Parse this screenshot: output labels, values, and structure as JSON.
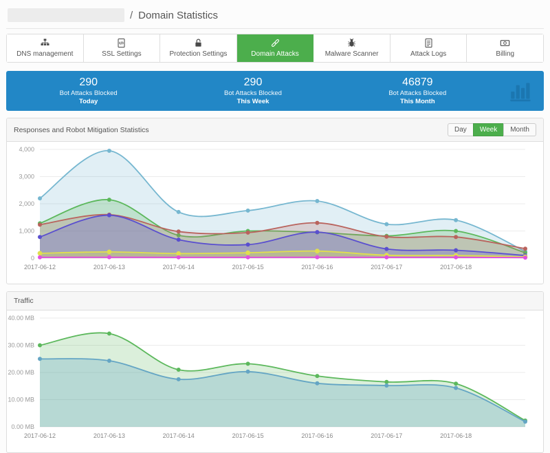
{
  "header": {
    "separator": "/",
    "title": "Domain Statistics"
  },
  "tabs": [
    {
      "label": "DNS management",
      "icon": "sitemap-icon",
      "active": false
    },
    {
      "label": "SSL Settings",
      "icon": "file-code-icon",
      "active": false
    },
    {
      "label": "Protection Settings",
      "icon": "unlock-icon",
      "active": false
    },
    {
      "label": "Domain Attacks",
      "icon": "chain-icon",
      "active": true
    },
    {
      "label": "Malware Scanner",
      "icon": "bug-icon",
      "active": false
    },
    {
      "label": "Attack Logs",
      "icon": "file-text-icon",
      "active": false
    },
    {
      "label": "Billing",
      "icon": "banknote-icon",
      "active": false
    }
  ],
  "banner": {
    "bg_color": "#2287c6",
    "icon": "bar-chart-icon",
    "stats": [
      {
        "value": "290",
        "label": "Bot Attacks Blocked",
        "period": "Today"
      },
      {
        "value": "290",
        "label": "Bot Attacks Blocked",
        "period": "This Week"
      },
      {
        "value": "46879",
        "label": "Bot Attacks Blocked",
        "period": "This Month"
      }
    ]
  },
  "chart_data": [
    {
      "type": "area",
      "title": "Responses and Robot Mitigation Statistics",
      "range_buttons": [
        "Day",
        "Week",
        "Month"
      ],
      "active_range": "Week",
      "x": [
        "2017-06-12",
        "2017-06-13",
        "2017-06-14",
        "2017-06-15",
        "2017-06-16",
        "2017-06-17",
        "2017-06-18",
        ""
      ],
      "ylim": [
        0,
        4000
      ],
      "yticks": [
        0,
        1000,
        2000,
        3000,
        4000
      ],
      "ytick_labels": [
        "0",
        "1,000",
        "2,000",
        "3,000",
        "4,000"
      ],
      "grid": true,
      "legend": "none",
      "series": [
        {
          "name": "light-blue",
          "color": "#76b7d0",
          "fill_opacity": 0.22,
          "dot_radius": 3,
          "values": [
            2200,
            3950,
            1700,
            1750,
            2100,
            1250,
            1400,
            250
          ]
        },
        {
          "name": "green",
          "color": "#5cb85c",
          "fill_opacity": 0.25,
          "dot_radius": 3,
          "values": [
            1280,
            2150,
            840,
            1000,
            950,
            820,
            1000,
            200
          ]
        },
        {
          "name": "red",
          "color": "#b9635d",
          "fill_opacity": 0.22,
          "dot_radius": 3,
          "values": [
            1230,
            1600,
            980,
            940,
            1300,
            790,
            780,
            350
          ]
        },
        {
          "name": "purple",
          "color": "#5a4fcf",
          "fill_opacity": 0.28,
          "dot_radius": 3,
          "values": [
            780,
            1580,
            680,
            500,
            960,
            340,
            290,
            100
          ]
        },
        {
          "name": "yellow",
          "color": "#e0df4e",
          "fill_opacity": 0.35,
          "dot_radius": 3.4,
          "values": [
            180,
            230,
            170,
            200,
            260,
            110,
            100,
            50
          ]
        },
        {
          "name": "magenta",
          "color": "#e14fe1",
          "fill_opacity": 0.35,
          "dot_radius": 3,
          "values": [
            30,
            35,
            30,
            30,
            35,
            30,
            30,
            20
          ]
        }
      ]
    },
    {
      "type": "area",
      "title": "Traffic",
      "x": [
        "2017-06-12",
        "2017-06-13",
        "2017-06-14",
        "2017-06-15",
        "2017-06-16",
        "2017-06-17",
        "2017-06-18",
        ""
      ],
      "ylim": [
        0,
        40
      ],
      "yticks": [
        0,
        10,
        20,
        30,
        40
      ],
      "ytick_labels": [
        "0.00 MB",
        "10.00 MB",
        "20.00 MB",
        "30.00 MB",
        "40.00 MB"
      ],
      "grid": true,
      "legend": "none",
      "series": [
        {
          "name": "traffic-green",
          "color": "#5cb85c",
          "fill_opacity": 0.22,
          "dot_radius": 3,
          "values": [
            30,
            34.3,
            21,
            23.2,
            18.7,
            16.5,
            15.9,
            2.3
          ]
        },
        {
          "name": "traffic-blue",
          "color": "#64a5c4",
          "fill_opacity": 0.3,
          "dot_radius": 3,
          "values": [
            25,
            24.3,
            17.5,
            20.3,
            16,
            15.2,
            14.3,
            1.9
          ]
        }
      ]
    }
  ]
}
